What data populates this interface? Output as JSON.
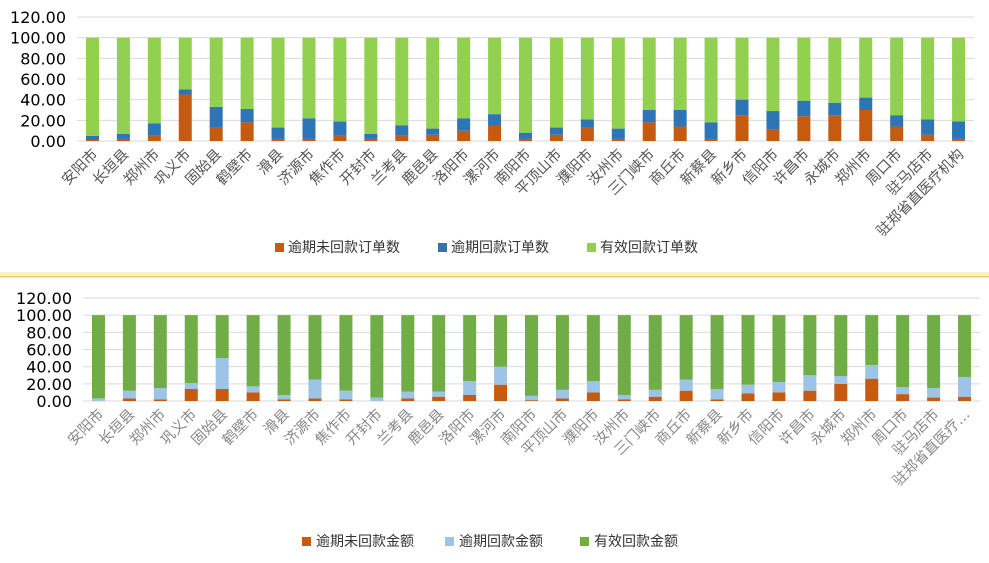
{
  "colors": {
    "c1_overdue_unpaid": "#c55a11",
    "c1_overdue_paid": "#2e75b6",
    "c1_valid_paid": "#92d050",
    "c2_overdue_unpaid": "#c55a11",
    "c2_overdue_paid": "#9dc3e6",
    "c2_valid_paid": "#70ad47",
    "grid": "#d9d9d9"
  },
  "chart_data": [
    {
      "type": "bar",
      "stacked": true,
      "categories": [
        "安阳市",
        "长垣县",
        "郑州市",
        "巩义市",
        "固始县",
        "鹤壁市",
        "滑县",
        "济源市",
        "焦作市",
        "开封市",
        "兰考县",
        "鹿邑县",
        "洛阳市",
        "漯河市",
        "南阳市",
        "平顶山市",
        "濮阳市",
        "汝州市",
        "三门峡市",
        "商丘市",
        "新蔡县",
        "新乡市",
        "信阳市",
        "许昌市",
        "永城市",
        "郑州市",
        "周口市",
        "驻马店市",
        "驻郑省直医疗机构"
      ],
      "series": [
        {
          "name": "逾期未回款订单数",
          "values": [
            1,
            2,
            5,
            45,
            13,
            18,
            2,
            2,
            5,
            2,
            5,
            6,
            10,
            15,
            2,
            6,
            13,
            2,
            18,
            14,
            2,
            25,
            11,
            24,
            25,
            30,
            14,
            6,
            2
          ]
        },
        {
          "name": "逾期回款订单数",
          "values": [
            4,
            5,
            12,
            5,
            20,
            13,
            11,
            20,
            14,
            5,
            10,
            6,
            12,
            11,
            6,
            7,
            8,
            10,
            12,
            16,
            16,
            15,
            18,
            15,
            12,
            12,
            11,
            15,
            17
          ]
        },
        {
          "name": "有效回款订单数",
          "values": [
            95,
            93,
            83,
            50,
            67,
            69,
            87,
            78,
            81,
            93,
            85,
            88,
            78,
            74,
            92,
            87,
            79,
            88,
            70,
            70,
            82,
            60,
            71,
            61,
            63,
            58,
            75,
            79,
            81
          ]
        }
      ],
      "yticks": [
        "0.00",
        "20.00",
        "40.00",
        "60.00",
        "80.00",
        "100.00",
        "120.00"
      ],
      "ylim": [
        0,
        120
      ],
      "legend": "bottom"
    },
    {
      "type": "bar",
      "stacked": true,
      "categories": [
        "安阳市",
        "长垣县",
        "郑州市",
        "巩义市",
        "固始县",
        "鹤壁市",
        "滑县",
        "济源市",
        "焦作市",
        "开封市",
        "兰考县",
        "鹿邑县",
        "洛阳市",
        "漯河市",
        "南阳市",
        "平顶山市",
        "濮阳市",
        "汝州市",
        "三门峡市",
        "商丘市",
        "新蔡县",
        "新乡市",
        "信阳市",
        "许昌市",
        "永城市",
        "郑州市",
        "周口市",
        "驻马店市",
        "驻郑省直医疗…"
      ],
      "series": [
        {
          "name": "逾期未回款金额",
          "values": [
            0,
            3,
            2,
            14,
            14,
            10,
            2,
            3,
            2,
            0,
            3,
            5,
            7,
            19,
            1,
            3,
            10,
            2,
            5,
            12,
            2,
            9,
            10,
            12,
            20,
            26,
            8,
            4,
            5
          ]
        },
        {
          "name": "逾期回款金额",
          "values": [
            3,
            9,
            13,
            7,
            36,
            7,
            5,
            22,
            10,
            4,
            8,
            6,
            16,
            21,
            5,
            10,
            13,
            5,
            8,
            13,
            12,
            10,
            12,
            18,
            9,
            16,
            8,
            11,
            23
          ]
        },
        {
          "name": "有效回款金额",
          "values": [
            97,
            88,
            85,
            79,
            50,
            83,
            93,
            75,
            88,
            96,
            89,
            89,
            77,
            60,
            94,
            87,
            77,
            93,
            87,
            75,
            86,
            81,
            78,
            70,
            71,
            58,
            84,
            85,
            72
          ]
        }
      ],
      "yticks": [
        "0.00",
        "20.00",
        "40.00",
        "60.00",
        "80.00",
        "100.00",
        "120.00"
      ],
      "ylim": [
        0,
        120
      ],
      "legend": "bottom"
    }
  ]
}
